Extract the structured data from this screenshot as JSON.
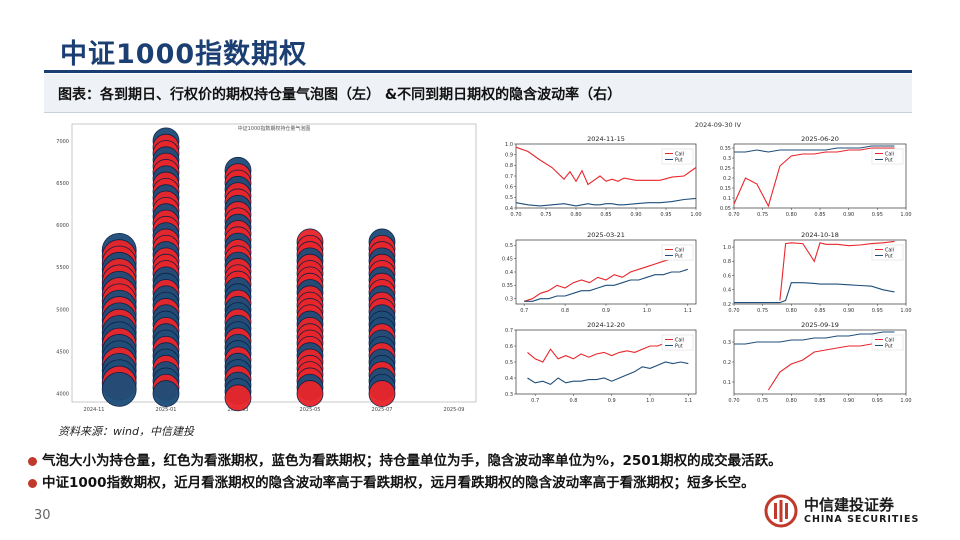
{
  "page": {
    "title": "中证1000指数期权",
    "subtitle": "图表：各到期日、行权价的期权持仓量气泡图（左） &不同到期日期权的隐含波动率（右）",
    "source": "资料来源：wind，中信建投",
    "notes": [
      "气泡大小为持仓量，红色为看涨期权，蓝色为看跌期权；持仓量单位为手，隐含波动率单位为%，2501期权的成交最活跃。",
      "中证1000指数期权，近月看涨期权的隐含波动率高于看跌期权，远月看跌期权的隐含波动率高于看涨期权；短多长空。"
    ],
    "page_number": "30",
    "logo": {
      "cn": "中信建投证券",
      "en": "CHINA SECURITIES"
    },
    "colors": {
      "brand": "#1b3f73",
      "call": "#e8262b",
      "put": "#1f4e79",
      "bullet": "#c0392b"
    }
  },
  "chart_data": [
    {
      "type": "scatter",
      "subtype": "bubble",
      "title": "中证1000指数期权持仓量气泡图",
      "xlabel": "",
      "ylabel": "",
      "x_categories": [
        "2024-11",
        "2025-01",
        "2025-03",
        "2025-05",
        "2025-07",
        "2025-09"
      ],
      "y_ticks": [
        4000,
        4500,
        5000,
        5500,
        6000,
        6500,
        7000
      ],
      "ylim": [
        3900,
        7200
      ],
      "series": [
        {
          "x_index": 0.35,
          "y_top": 5700,
          "y_bottom": 4050,
          "dominant": "mixed"
        },
        {
          "x_index": 1.0,
          "y_top": 7000,
          "y_bottom": 3950,
          "dominant": "mixed"
        },
        {
          "x_index": 2.0,
          "y_top": 6650,
          "y_bottom": 3950,
          "dominant": "mixed"
        },
        {
          "x_index": 3.0,
          "y_top": 5800,
          "y_bottom": 3950,
          "dominant": "red"
        },
        {
          "x_index": 4.0,
          "y_top": 5800,
          "y_bottom": 3950,
          "dominant": "mixed"
        }
      ]
    },
    {
      "type": "line",
      "title": "2024-11-15",
      "ylim": [
        0.4,
        1.0
      ],
      "xlim": [
        0.7,
        1.0
      ],
      "x_ticks": [
        0.7,
        0.75,
        0.8,
        0.85,
        0.9,
        0.95,
        1.0
      ],
      "y_ticks": [
        0.4,
        0.5,
        0.6,
        0.7,
        0.8,
        0.9,
        1.0
      ],
      "x": [
        0.7,
        0.72,
        0.74,
        0.76,
        0.78,
        0.79,
        0.8,
        0.81,
        0.82,
        0.83,
        0.84,
        0.85,
        0.86,
        0.87,
        0.88,
        0.9,
        0.92,
        0.94,
        0.96,
        0.98,
        1.0
      ],
      "series": [
        {
          "name": "Call",
          "values": [
            0.97,
            0.93,
            0.85,
            0.78,
            0.67,
            0.74,
            0.65,
            0.75,
            0.62,
            0.66,
            0.7,
            0.65,
            0.67,
            0.65,
            0.68,
            0.66,
            0.66,
            0.66,
            0.69,
            0.7,
            0.78
          ]
        },
        {
          "name": "Put",
          "values": [
            0.45,
            0.43,
            0.42,
            0.43,
            0.44,
            0.43,
            0.42,
            0.43,
            0.44,
            0.43,
            0.43,
            0.44,
            0.44,
            0.43,
            0.43,
            0.44,
            0.45,
            0.45,
            0.46,
            0.48,
            0.49
          ]
        }
      ]
    },
    {
      "type": "line",
      "title": "2025-06-20",
      "ylim": [
        0.05,
        0.37
      ],
      "xlim": [
        0.7,
        1.0
      ],
      "x_ticks": [
        0.7,
        0.75,
        0.8,
        0.85,
        0.9,
        0.95,
        1.0
      ],
      "y_ticks": [
        0.05,
        0.1,
        0.15,
        0.2,
        0.25,
        0.3,
        0.35
      ],
      "x": [
        0.7,
        0.72,
        0.74,
        0.76,
        0.78,
        0.8,
        0.82,
        0.84,
        0.86,
        0.88,
        0.9,
        0.92,
        0.94,
        0.96,
        0.98
      ],
      "series": [
        {
          "name": "Call",
          "values": [
            0.07,
            0.2,
            0.17,
            0.06,
            0.26,
            0.31,
            0.32,
            0.32,
            0.33,
            0.33,
            0.34,
            0.34,
            0.35,
            0.35,
            0.35
          ]
        },
        {
          "name": "Put",
          "values": [
            0.33,
            0.33,
            0.34,
            0.33,
            0.34,
            0.34,
            0.34,
            0.34,
            0.34,
            0.35,
            0.35,
            0.35,
            0.36,
            0.36,
            0.36
          ]
        }
      ]
    },
    {
      "type": "line",
      "title": "2025-03-21",
      "ylim": [
        0.28,
        0.52
      ],
      "xlim": [
        0.68,
        1.12
      ],
      "x_ticks": [
        0.7,
        0.8,
        0.9,
        1.0,
        1.1
      ],
      "y_ticks": [
        0.3,
        0.35,
        0.4,
        0.45,
        0.5
      ],
      "x": [
        0.7,
        0.72,
        0.74,
        0.76,
        0.78,
        0.8,
        0.82,
        0.84,
        0.86,
        0.88,
        0.9,
        0.92,
        0.94,
        0.96,
        0.98,
        1.0,
        1.02,
        1.04,
        1.06,
        1.08,
        1.1
      ],
      "series": [
        {
          "name": "Call",
          "values": [
            0.29,
            0.3,
            0.32,
            0.33,
            0.35,
            0.34,
            0.36,
            0.37,
            0.36,
            0.38,
            0.37,
            0.39,
            0.38,
            0.4,
            0.41,
            0.42,
            0.43,
            0.44,
            0.45,
            0.46,
            0.49
          ]
        },
        {
          "name": "Put",
          "values": [
            0.29,
            0.29,
            0.3,
            0.3,
            0.31,
            0.31,
            0.32,
            0.33,
            0.33,
            0.34,
            0.35,
            0.35,
            0.36,
            0.37,
            0.37,
            0.38,
            0.39,
            0.39,
            0.4,
            0.4,
            0.41
          ]
        }
      ]
    },
    {
      "type": "line",
      "title": "2024-10-18",
      "ylim": [
        0.2,
        1.1
      ],
      "xlim": [
        0.7,
        1.0
      ],
      "x_ticks": [
        0.7,
        0.75,
        0.8,
        0.85,
        0.9,
        0.95,
        1.0
      ],
      "y_ticks": [
        0.2,
        0.4,
        0.6,
        0.8,
        1.0
      ],
      "x": [
        0.7,
        0.72,
        0.74,
        0.76,
        0.78,
        0.79,
        0.8,
        0.82,
        0.84,
        0.85,
        0.86,
        0.88,
        0.9,
        0.92,
        0.94,
        0.96,
        0.98
      ],
      "series": [
        {
          "name": "Call",
          "values": [
            null,
            null,
            null,
            null,
            0.25,
            1.05,
            1.06,
            1.05,
            0.8,
            1.06,
            1.04,
            1.04,
            1.02,
            1.03,
            1.05,
            1.06,
            1.08
          ]
        },
        {
          "name": "Put",
          "values": [
            0.22,
            0.22,
            0.22,
            0.22,
            0.22,
            0.25,
            0.5,
            0.5,
            0.49,
            0.48,
            0.48,
            0.48,
            0.47,
            0.46,
            0.45,
            0.4,
            0.37
          ]
        }
      ]
    },
    {
      "type": "line",
      "title": "2024-12-20",
      "ylim": [
        0.3,
        0.7
      ],
      "xlim": [
        0.65,
        1.12
      ],
      "x_ticks": [
        0.7,
        0.8,
        0.9,
        1.0,
        1.1
      ],
      "y_ticks": [
        0.3,
        0.4,
        0.5,
        0.6,
        0.7
      ],
      "x": [
        0.68,
        0.7,
        0.72,
        0.74,
        0.76,
        0.78,
        0.8,
        0.82,
        0.84,
        0.86,
        0.88,
        0.9,
        0.92,
        0.94,
        0.96,
        0.98,
        1.0,
        1.02,
        1.04,
        1.06,
        1.08,
        1.1
      ],
      "series": [
        {
          "name": "Call",
          "values": [
            0.56,
            0.52,
            0.5,
            0.58,
            0.52,
            0.54,
            0.52,
            0.55,
            0.53,
            0.55,
            0.56,
            0.54,
            0.56,
            0.57,
            0.56,
            0.58,
            0.6,
            0.6,
            0.62,
            0.61,
            0.62,
            0.63
          ]
        },
        {
          "name": "Put",
          "values": [
            0.4,
            0.37,
            0.38,
            0.36,
            0.4,
            0.37,
            0.38,
            0.38,
            0.39,
            0.39,
            0.4,
            0.38,
            0.4,
            0.42,
            0.44,
            0.47,
            0.46,
            0.48,
            0.5,
            0.49,
            0.5,
            0.49
          ]
        }
      ]
    },
    {
      "type": "line",
      "title": "2025-09-19",
      "ylim": [
        0.04,
        0.36
      ],
      "xlim": [
        0.7,
        1.0
      ],
      "x_ticks": [
        0.7,
        0.75,
        0.8,
        0.85,
        0.9,
        0.95,
        1.0
      ],
      "y_ticks": [
        0.1,
        0.2,
        0.3
      ],
      "x": [
        0.7,
        0.72,
        0.74,
        0.76,
        0.78,
        0.8,
        0.82,
        0.84,
        0.86,
        0.88,
        0.9,
        0.92,
        0.94,
        0.96,
        0.98
      ],
      "series": [
        {
          "name": "Call",
          "values": [
            null,
            null,
            null,
            0.06,
            0.15,
            0.19,
            0.21,
            0.25,
            0.26,
            0.27,
            0.28,
            0.28,
            0.29,
            0.3,
            0.31
          ]
        },
        {
          "name": "Put",
          "values": [
            0.29,
            0.29,
            0.3,
            0.3,
            0.3,
            0.31,
            0.31,
            0.32,
            0.32,
            0.33,
            0.33,
            0.34,
            0.34,
            0.35,
            0.35
          ]
        }
      ]
    }
  ]
}
